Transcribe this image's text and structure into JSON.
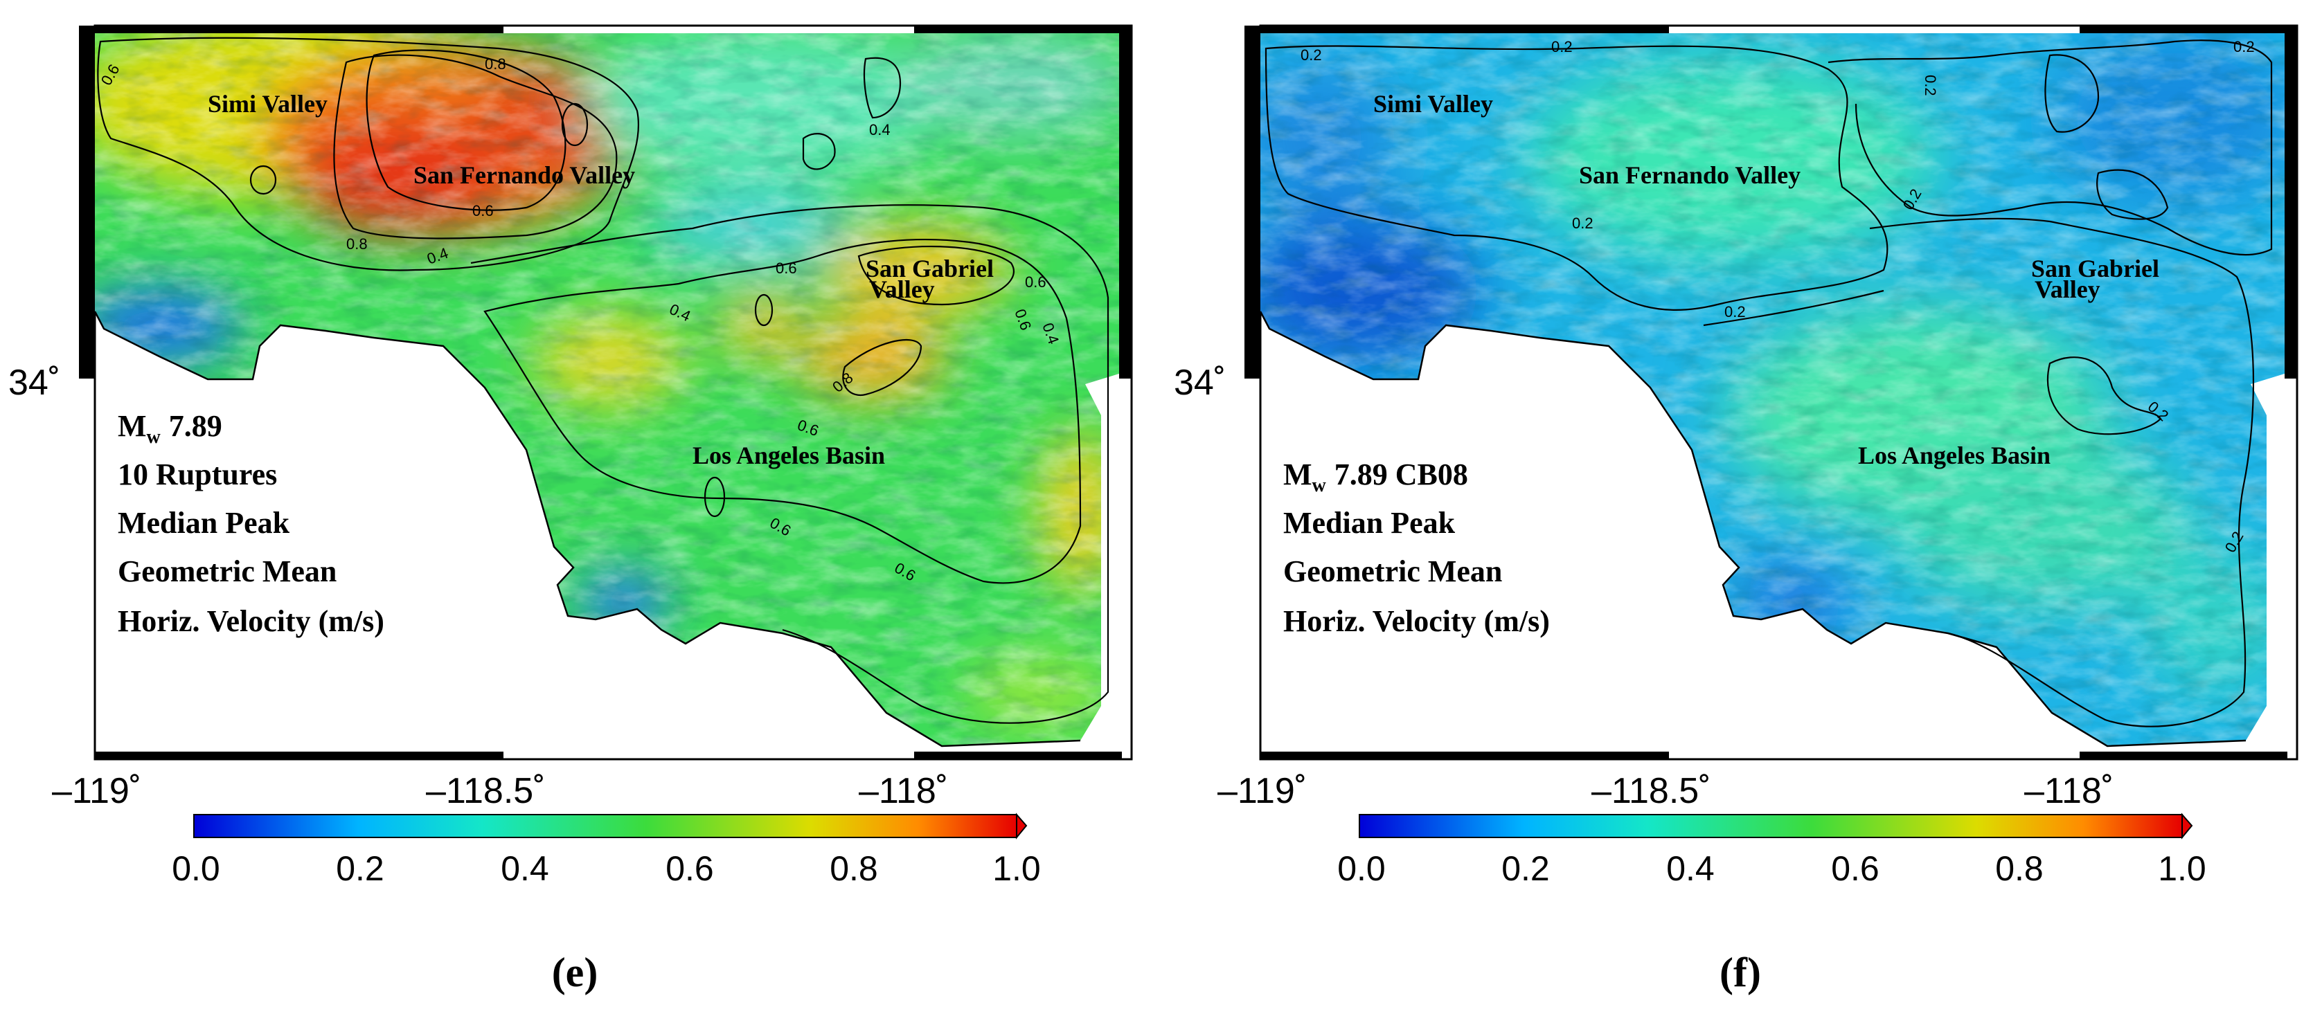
{
  "panels": [
    {
      "id": "e",
      "caption": "(e)",
      "info_lines": [
        "10 Ruptures",
        "Median Peak",
        "Geometric Mean",
        "Horiz. Velocity (m/s)"
      ],
      "magnitude_symbol": "M",
      "magnitude_sub": "w",
      "magnitude_value": "7.89",
      "places": [
        "Simi Valley",
        "San Fernando Valley",
        "San Gabriel",
        "Valley",
        "Los Angeles Basin"
      ],
      "contour_labels": [
        "0.6",
        "0.8",
        "0.8",
        "0.6",
        "0.4",
        "0.4",
        "0.6",
        "0.6",
        "0.4",
        "0.8",
        "0.6",
        "0.6",
        "0.6",
        "0.4",
        "0.6"
      ],
      "axis": {
        "x_ticks": [
          "–119˚",
          "–118.5˚",
          "–118˚"
        ],
        "y_ticks": [
          "34˚"
        ]
      },
      "colorbar_ticks": [
        "0.0",
        "0.2",
        "0.4",
        "0.6",
        "0.8",
        "1.0"
      ]
    },
    {
      "id": "f",
      "caption": "(f)",
      "info_lines": [
        "Median Peak",
        "Geometric Mean",
        "Horiz. Velocity (m/s)"
      ],
      "magnitude_symbol": "M",
      "magnitude_sub": "w",
      "magnitude_value": "7.89 CB08",
      "places": [
        "Simi Valley",
        "San Fernando Valley",
        "San Gabriel",
        "Valley",
        "Los Angeles Basin"
      ],
      "contour_labels": [
        "0.2",
        "0.2",
        "0.2",
        "0.2",
        "0.2",
        "0.2",
        "0.2",
        "0.2",
        "0.2"
      ],
      "axis": {
        "x_ticks": [
          "–119˚",
          "–118.5˚",
          "–118˚"
        ],
        "y_ticks": [
          "34˚"
        ]
      },
      "colorbar_ticks": [
        "0.0",
        "0.2",
        "0.4",
        "0.6",
        "0.8",
        "1.0"
      ]
    }
  ],
  "colors": {
    "colormap": [
      "#0000d8",
      "#00b4ff",
      "#14e6c8",
      "#3cdc3c",
      "#dcdc00",
      "#ff8c00",
      "#e60000"
    ],
    "land_background": "#ffffff",
    "frame": "#000000"
  }
}
